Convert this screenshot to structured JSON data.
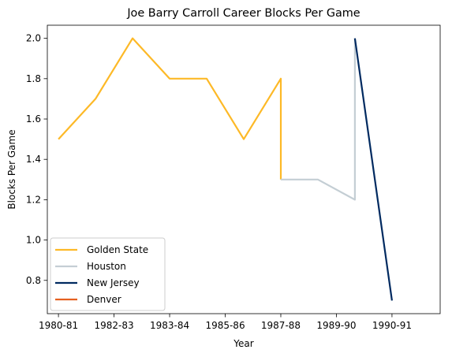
{
  "chart_data": {
    "type": "line",
    "title": "Joe Barry Carroll Career Blocks Per Game",
    "xlabel": "Year",
    "ylabel": "Blocks Per Game",
    "xlim": [
      -0.3,
      10.3
    ],
    "ylim": [
      0.635,
      2.065
    ],
    "x_ticks": [
      {
        "pos": 0,
        "label": "1980-81"
      },
      {
        "pos": 1.5,
        "label": "1982-83"
      },
      {
        "pos": 3,
        "label": "1983-84"
      },
      {
        "pos": 4.5,
        "label": "1985-86"
      },
      {
        "pos": 6,
        "label": "1987-88"
      },
      {
        "pos": 7.5,
        "label": "1989-90"
      },
      {
        "pos": 9,
        "label": "1990-91"
      }
    ],
    "y_ticks": [
      0.8,
      1.0,
      1.2,
      1.4,
      1.6,
      1.8,
      2.0
    ],
    "y_tick_labels": [
      "0.8",
      "1.0",
      "1.2",
      "1.4",
      "1.6",
      "1.8",
      "2.0"
    ],
    "series": [
      {
        "name": "Golden State",
        "color": "#FDB927",
        "x": [
          0,
          1,
          2,
          3,
          4,
          5,
          6,
          6
        ],
        "y": [
          1.5,
          1.7,
          2.0,
          1.8,
          1.8,
          1.5,
          1.8,
          1.3
        ]
      },
      {
        "name": "Houston",
        "color": "#C4CED4",
        "x": [
          6,
          7,
          8,
          8
        ],
        "y": [
          1.3,
          1.3,
          1.2,
          2.0
        ]
      },
      {
        "name": "New Jersey",
        "color": "#002A60",
        "x": [
          8,
          9
        ],
        "y": [
          2.0,
          0.7
        ]
      },
      {
        "name": "Denver",
        "color": "#E56020",
        "x": [],
        "y": []
      }
    ],
    "legend_position": "lower-left",
    "grid": false
  }
}
